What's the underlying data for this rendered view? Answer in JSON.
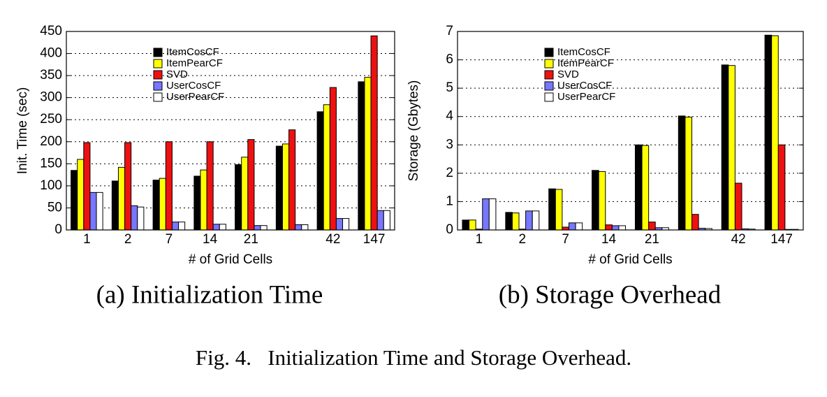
{
  "chart_data": [
    {
      "type": "bar",
      "caption": "(a) Initialization Time",
      "xlabel": "# of Grid Cells",
      "ylabel": "Init. Time (sec)",
      "categories": [
        "1",
        "2",
        "7",
        "14",
        "21",
        null,
        "42",
        "147"
      ],
      "ylim": [
        0,
        450
      ],
      "yticks": [
        0,
        50,
        100,
        150,
        200,
        250,
        300,
        350,
        400,
        450
      ],
      "grid": true,
      "legend": "top-left",
      "series": [
        {
          "name": "ItemCosCF",
          "color": "#000000",
          "values": [
            135,
            111,
            113,
            122,
            148,
            190,
            268,
            336
          ]
        },
        {
          "name": "ItemPearCF",
          "color": "#ffff00",
          "values": [
            160,
            142,
            117,
            136,
            165,
            195,
            284,
            346
          ]
        },
        {
          "name": "SVD",
          "color": "#ee1111",
          "values": [
            198,
            198,
            200,
            200,
            205,
            227,
            323,
            440
          ]
        },
        {
          "name": "UserCosCF",
          "color": "#7777ff",
          "values": [
            85,
            55,
            18,
            13,
            10,
            12,
            26,
            44
          ]
        },
        {
          "name": "UserPearCF",
          "color": "#ffffff",
          "values": [
            85,
            52,
            18,
            13,
            10,
            12,
            26,
            44
          ]
        }
      ]
    },
    {
      "type": "bar",
      "caption": "(b) Storage Overhead",
      "xlabel": "# of Grid Cells",
      "ylabel": "Storage (Gbytes)",
      "categories": [
        "1",
        "2",
        "7",
        "14",
        "21",
        null,
        "42",
        "147"
      ],
      "ylim": [
        0,
        7
      ],
      "yticks": [
        0,
        1,
        2,
        3,
        4,
        5,
        6,
        7
      ],
      "grid": true,
      "legend": "top-left",
      "series": [
        {
          "name": "ItemCosCF",
          "color": "#000000",
          "values": [
            0.35,
            0.62,
            1.45,
            2.1,
            3.0,
            4.02,
            5.82,
            6.87
          ]
        },
        {
          "name": "ItemPearCF",
          "color": "#ffff00",
          "values": [
            0.35,
            0.6,
            1.43,
            2.06,
            2.98,
            3.98,
            5.8,
            6.85
          ]
        },
        {
          "name": "SVD",
          "color": "#ee1111",
          "values": [
            0.03,
            0.03,
            0.1,
            0.18,
            0.28,
            0.55,
            1.65,
            3.0
          ]
        },
        {
          "name": "UserCosCF",
          "color": "#7777ff",
          "values": [
            1.1,
            0.67,
            0.25,
            0.15,
            0.08,
            0.06,
            0.04,
            0.02
          ]
        },
        {
          "name": "UserPearCF",
          "color": "#ffffff",
          "values": [
            1.1,
            0.67,
            0.25,
            0.15,
            0.08,
            0.05,
            0.03,
            0.02
          ]
        }
      ]
    }
  ],
  "caption": "Fig. 4.   Initialization Time and Storage Overhead."
}
